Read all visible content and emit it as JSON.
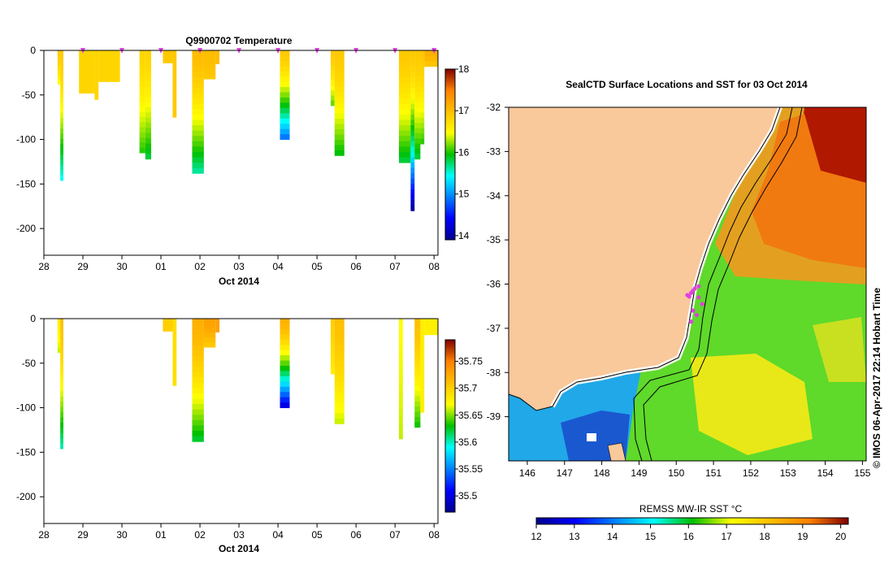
{
  "chart_data": [
    {
      "type": "heatmap",
      "title": "Q9900702  Temperature",
      "xlabel": "Oct 2014",
      "ylabel": "",
      "ylim": [
        -230,
        0
      ],
      "yticks": [
        0,
        -50,
        -100,
        -150,
        -200
      ],
      "xlim_days": [
        0,
        10.1
      ],
      "xtick_labels": [
        "28",
        "29",
        "30",
        "01",
        "02",
        "03",
        "04",
        "05",
        "06",
        "07",
        "08"
      ],
      "colorbar": {
        "min": 13.9,
        "max": 18,
        "ticks": [
          14,
          15,
          16,
          17,
          18
        ]
      },
      "profile_markers_days": [
        1.0,
        2.0,
        3.0,
        4.0,
        5.0,
        6.0,
        7.0,
        8.0,
        9.0,
        10.0,
        10.0
      ],
      "profiles": [
        {
          "t0": 0.35,
          "t1": 0.42,
          "depth": 38,
          "surf": 16.9,
          "bot": 16.4
        },
        {
          "t0": 0.42,
          "t1": 0.5,
          "depth": 146,
          "surf": 16.9,
          "bot": 15.4
        },
        {
          "t0": 0.9,
          "t1": 1.3,
          "depth": 48,
          "surf": 16.8,
          "bot": 16.8
        },
        {
          "t0": 1.3,
          "t1": 1.4,
          "depth": 55,
          "surf": 16.8,
          "bot": 16.8
        },
        {
          "t0": 1.4,
          "t1": 1.95,
          "depth": 35,
          "surf": 16.8,
          "bot": 16.8
        },
        {
          "t0": 2.45,
          "t1": 2.6,
          "depth": 115,
          "surf": 16.8,
          "bot": 16.0
        },
        {
          "t0": 2.6,
          "t1": 2.75,
          "depth": 122,
          "surf": 16.8,
          "bot": 15.8
        },
        {
          "t0": 3.05,
          "t1": 3.3,
          "depth": 14,
          "surf": 16.9,
          "bot": 16.9
        },
        {
          "t0": 3.3,
          "t1": 3.4,
          "depth": 75,
          "surf": 16.9,
          "bot": 16.9
        },
        {
          "t0": 3.8,
          "t1": 4.1,
          "depth": 138,
          "surf": 17.0,
          "bot": 15.6
        },
        {
          "t0": 4.1,
          "t1": 4.4,
          "depth": 32,
          "surf": 17.0,
          "bot": 16.9
        },
        {
          "t0": 4.4,
          "t1": 4.5,
          "depth": 15,
          "surf": 17.0,
          "bot": 17.0
        },
        {
          "t0": 6.05,
          "t1": 6.3,
          "depth": 100,
          "surf": 16.9,
          "bot": 14.8
        },
        {
          "t0": 7.35,
          "t1": 7.45,
          "depth": 62,
          "surf": 16.9,
          "bot": 16.1
        },
        {
          "t0": 7.45,
          "t1": 7.7,
          "depth": 118,
          "surf": 16.9,
          "bot": 15.9
        },
        {
          "t0": 9.1,
          "t1": 9.4,
          "depth": 126,
          "surf": 16.9,
          "bot": 15.8
        },
        {
          "t0": 9.4,
          "t1": 9.5,
          "depth": 180,
          "surf": 16.9,
          "bot": 13.9
        },
        {
          "t0": 9.5,
          "t1": 9.65,
          "depth": 122,
          "surf": 16.9,
          "bot": 15.8
        },
        {
          "t0": 9.65,
          "t1": 9.75,
          "depth": 105,
          "surf": 16.9,
          "bot": 16.0
        },
        {
          "t0": 9.75,
          "t1": 10.1,
          "depth": 18,
          "surf": 17.1,
          "bot": 16.9
        }
      ]
    },
    {
      "type": "heatmap",
      "title": "",
      "xlabel": "Oct 2014",
      "ylabel": "",
      "ylim": [
        -230,
        0
      ],
      "yticks": [
        0,
        -50,
        -100,
        -150,
        -200
      ],
      "xlim_days": [
        0,
        10.1
      ],
      "xtick_labels": [
        "28",
        "29",
        "30",
        "01",
        "02",
        "03",
        "04",
        "05",
        "06",
        "07",
        "08"
      ],
      "colorbar": {
        "min": 35.47,
        "max": 35.79,
        "ticks": [
          35.5,
          35.55,
          35.6,
          35.65,
          35.7,
          35.75
        ]
      },
      "profiles": [
        {
          "t0": 0.35,
          "t1": 0.42,
          "depth": 38,
          "surf": 35.68,
          "bot": 35.66
        },
        {
          "t0": 0.42,
          "t1": 0.5,
          "depth": 146,
          "surf": 35.71,
          "bot": 35.6
        },
        {
          "t0": 3.05,
          "t1": 3.3,
          "depth": 14,
          "surf": 35.7,
          "bot": 35.7
        },
        {
          "t0": 3.3,
          "t1": 3.4,
          "depth": 75,
          "surf": 35.69,
          "bot": 35.69
        },
        {
          "t0": 3.8,
          "t1": 4.1,
          "depth": 138,
          "surf": 35.72,
          "bot": 35.62
        },
        {
          "t0": 4.1,
          "t1": 4.4,
          "depth": 32,
          "surf": 35.73,
          "bot": 35.7
        },
        {
          "t0": 4.4,
          "t1": 4.5,
          "depth": 15,
          "surf": 35.73,
          "bot": 35.73
        },
        {
          "t0": 6.05,
          "t1": 6.3,
          "depth": 100,
          "surf": 35.72,
          "bot": 35.49
        },
        {
          "t0": 7.35,
          "t1": 7.45,
          "depth": 62,
          "surf": 35.7,
          "bot": 35.68
        },
        {
          "t0": 7.45,
          "t1": 7.7,
          "depth": 118,
          "surf": 35.71,
          "bot": 35.66
        },
        {
          "t0": 9.1,
          "t1": 9.2,
          "depth": 135,
          "surf": 35.67,
          "bot": 35.66
        },
        {
          "t0": 9.5,
          "t1": 9.65,
          "depth": 122,
          "surf": 35.71,
          "bot": 35.63
        },
        {
          "t0": 9.65,
          "t1": 9.75,
          "depth": 105,
          "surf": 35.68,
          "bot": 35.68
        },
        {
          "t0": 9.75,
          "t1": 10.1,
          "depth": 18,
          "surf": 35.68,
          "bot": 35.68
        }
      ]
    },
    {
      "type": "heatmap",
      "title": "SealCTD Surface Locations and SST for 03 Oct 2014",
      "xlim": [
        145.5,
        155.1
      ],
      "ylim": [
        -40.0,
        -32.0
      ],
      "xticks": [
        146,
        147,
        148,
        149,
        150,
        151,
        152,
        153,
        154,
        155
      ],
      "yticks": [
        -32,
        -33,
        -34,
        -35,
        -36,
        -37,
        -38,
        -39
      ],
      "colorbar": {
        "label": "REMSS MW-IR SST °C",
        "min": 12,
        "max": 20.2,
        "ticks": [
          12,
          13,
          14,
          15,
          16,
          17,
          18,
          19,
          20
        ]
      },
      "land_color": "#f9c89b",
      "marker_color": "#e040e0",
      "seal_locations": [
        [
          150.3,
          -36.25
        ],
        [
          150.35,
          -36.28
        ],
        [
          150.4,
          -36.2
        ],
        [
          150.45,
          -36.15
        ],
        [
          150.5,
          -36.1
        ],
        [
          150.6,
          -36.3
        ],
        [
          150.7,
          -36.45
        ],
        [
          150.45,
          -36.6
        ],
        [
          150.55,
          -36.7
        ],
        [
          150.4,
          -36.85
        ],
        [
          150.6,
          -36.05
        ]
      ],
      "credit": "© IMOS 06-Apr-2017 22:14 Hobart Time"
    }
  ]
}
